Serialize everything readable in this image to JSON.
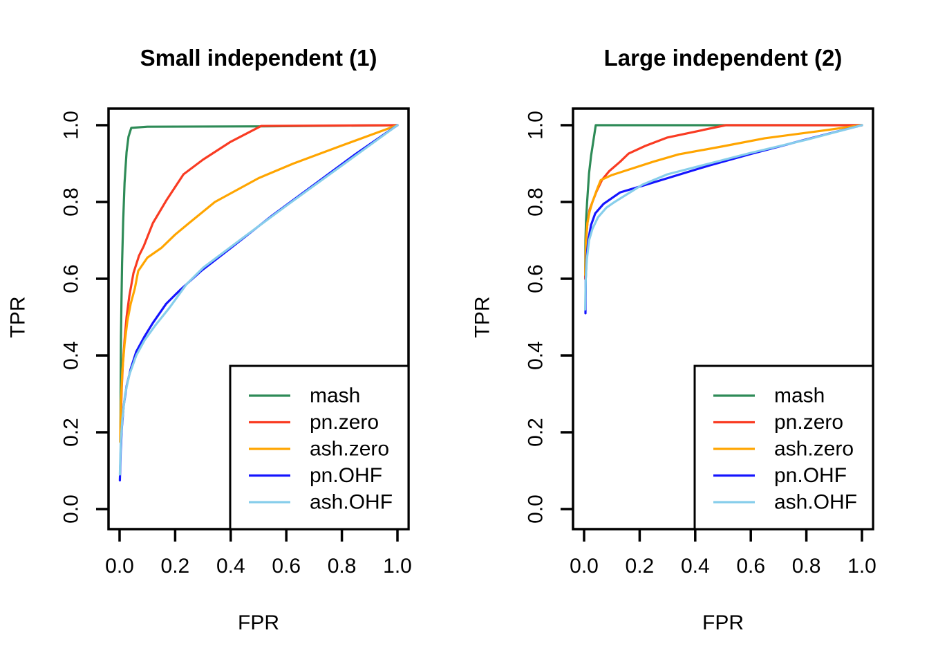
{
  "figure": {
    "background": "#ffffff",
    "text_color": "#000000",
    "axis_color": "#000000"
  },
  "legend": {
    "entries": [
      "mash",
      "pn.zero",
      "ash.zero",
      "pn.OHF",
      "ash.OHF"
    ],
    "position": "bottomright"
  },
  "colors": {
    "mash": "#2E8B57",
    "pn_zero": "#F93B22",
    "ash_zero": "#FFA500",
    "pn_OHF": "#1414FF",
    "ash_OHF": "#87CEEB"
  },
  "chart_data": [
    {
      "type": "line",
      "title": "Small independent (1)",
      "xlabel": "FPR",
      "ylabel": "TPR",
      "xlim": [
        0,
        1
      ],
      "ylim": [
        0,
        1
      ],
      "grid": false,
      "legend_position": "bottomright",
      "xticks": [
        "0.0",
        "0.2",
        "0.4",
        "0.6",
        "0.8",
        "1.0"
      ],
      "yticks": [
        "0.0",
        "0.2",
        "0.4",
        "0.6",
        "0.8",
        "1.0"
      ],
      "series": [
        {
          "name": "mash",
          "color": "#2E8B57",
          "points": [
            [
              0.003,
              0.19
            ],
            [
              0.004,
              0.33
            ],
            [
              0.005,
              0.45
            ],
            [
              0.007,
              0.55
            ],
            [
              0.009,
              0.64
            ],
            [
              0.013,
              0.75
            ],
            [
              0.018,
              0.85
            ],
            [
              0.025,
              0.93
            ],
            [
              0.032,
              0.97
            ],
            [
              0.042,
              0.993
            ],
            [
              0.1,
              0.996
            ],
            [
              0.52,
              0.997
            ],
            [
              1,
              1
            ]
          ]
        },
        {
          "name": "pn.zero",
          "color": "#F93B22",
          "points": [
            [
              0.003,
              0.18
            ],
            [
              0.005,
              0.25
            ],
            [
              0.008,
              0.32
            ],
            [
              0.012,
              0.38
            ],
            [
              0.018,
              0.44
            ],
            [
              0.025,
              0.5
            ],
            [
              0.035,
              0.555
            ],
            [
              0.05,
              0.615
            ],
            [
              0.07,
              0.66
            ],
            [
              0.087,
              0.685
            ],
            [
              0.12,
              0.745
            ],
            [
              0.17,
              0.806
            ],
            [
              0.23,
              0.872
            ],
            [
              0.3,
              0.91
            ],
            [
              0.4,
              0.957
            ],
            [
              0.51,
              0.998
            ],
            [
              1,
              1
            ]
          ]
        },
        {
          "name": "ash.zero",
          "color": "#FFA500",
          "points": [
            [
              0.002,
              0.175
            ],
            [
              0.005,
              0.28
            ],
            [
              0.01,
              0.36
            ],
            [
              0.018,
              0.43
            ],
            [
              0.028,
              0.49
            ],
            [
              0.04,
              0.535
            ],
            [
              0.055,
              0.575
            ],
            [
              0.067,
              0.62
            ],
            [
              0.1,
              0.655
            ],
            [
              0.15,
              0.68
            ],
            [
              0.2,
              0.715
            ],
            [
              0.25,
              0.745
            ],
            [
              0.343,
              0.8
            ],
            [
              0.5,
              0.862
            ],
            [
              0.625,
              0.9
            ],
            [
              0.8,
              0.947
            ],
            [
              1,
              1
            ]
          ]
        },
        {
          "name": "pn.OHF",
          "color": "#1414FF",
          "points": [
            [
              0.001,
              0.075
            ],
            [
              0.004,
              0.15
            ],
            [
              0.008,
              0.21
            ],
            [
              0.015,
              0.27
            ],
            [
              0.025,
              0.32
            ],
            [
              0.04,
              0.365
            ],
            [
              0.06,
              0.41
            ],
            [
              0.09,
              0.45
            ],
            [
              0.12,
              0.485
            ],
            [
              0.168,
              0.535
            ],
            [
              0.22,
              0.572
            ],
            [
              0.293,
              0.62
            ],
            [
              0.4,
              0.68
            ],
            [
              0.55,
              0.765
            ],
            [
              0.7,
              0.845
            ],
            [
              0.85,
              0.925
            ],
            [
              1,
              1
            ]
          ]
        },
        {
          "name": "ash.OHF",
          "color": "#87CEEB",
          "points": [
            [
              0.001,
              0.09
            ],
            [
              0.004,
              0.17
            ],
            [
              0.01,
              0.235
            ],
            [
              0.02,
              0.3
            ],
            [
              0.035,
              0.35
            ],
            [
              0.06,
              0.4
            ],
            [
              0.09,
              0.44
            ],
            [
              0.13,
              0.48
            ],
            [
              0.18,
              0.525
            ],
            [
              0.24,
              0.585
            ],
            [
              0.301,
              0.629
            ],
            [
              0.45,
              0.71
            ],
            [
              0.6,
              0.79
            ],
            [
              0.8,
              0.895
            ],
            [
              1,
              1
            ]
          ]
        }
      ]
    },
    {
      "type": "line",
      "title": "Large independent (2)",
      "xlabel": "FPR",
      "ylabel": "TPR",
      "xlim": [
        0,
        1
      ],
      "ylim": [
        0,
        1
      ],
      "grid": false,
      "legend_position": "bottomright",
      "xticks": [
        "0.0",
        "0.2",
        "0.4",
        "0.6",
        "0.8",
        "1.0"
      ],
      "yticks": [
        "0.0",
        "0.2",
        "0.4",
        "0.6",
        "0.8",
        "1.0"
      ],
      "series": [
        {
          "name": "mash",
          "color": "#2E8B57",
          "points": [
            [
              0.004,
              0.6
            ],
            [
              0.005,
              0.7
            ],
            [
              0.007,
              0.75
            ],
            [
              0.011,
              0.8
            ],
            [
              0.018,
              0.875
            ],
            [
              0.025,
              0.92
            ],
            [
              0.042,
              1.0
            ],
            [
              1,
              1
            ]
          ]
        },
        {
          "name": "pn.zero",
          "color": "#F93B22",
          "points": [
            [
              0.004,
              0.6
            ],
            [
              0.007,
              0.7
            ],
            [
              0.012,
              0.745
            ],
            [
              0.02,
              0.78
            ],
            [
              0.03,
              0.8
            ],
            [
              0.045,
              0.828
            ],
            [
              0.065,
              0.858
            ],
            [
              0.09,
              0.88
            ],
            [
              0.13,
              0.905
            ],
            [
              0.16,
              0.926
            ],
            [
              0.22,
              0.946
            ],
            [
              0.3,
              0.968
            ],
            [
              0.51,
              1.0
            ],
            [
              1,
              1
            ]
          ]
        },
        {
          "name": "ash.zero",
          "color": "#FFA500",
          "points": [
            [
              0.004,
              0.61
            ],
            [
              0.007,
              0.7
            ],
            [
              0.012,
              0.745
            ],
            [
              0.02,
              0.775
            ],
            [
              0.03,
              0.8
            ],
            [
              0.045,
              0.83
            ],
            [
              0.06,
              0.857
            ],
            [
              0.1,
              0.87
            ],
            [
              0.147,
              0.881
            ],
            [
              0.25,
              0.905
            ],
            [
              0.34,
              0.924
            ],
            [
              0.5,
              0.945
            ],
            [
              0.65,
              0.966
            ],
            [
              0.85,
              0.985
            ],
            [
              1,
              1
            ]
          ]
        },
        {
          "name": "pn.OHF",
          "color": "#1414FF",
          "points": [
            [
              0.005,
              0.51
            ],
            [
              0.006,
              0.6
            ],
            [
              0.009,
              0.65
            ],
            [
              0.015,
              0.7
            ],
            [
              0.025,
              0.74
            ],
            [
              0.04,
              0.77
            ],
            [
              0.07,
              0.795
            ],
            [
              0.1,
              0.81
            ],
            [
              0.13,
              0.825
            ],
            [
              0.2,
              0.84
            ],
            [
              0.3,
              0.862
            ],
            [
              0.45,
              0.895
            ],
            [
              0.6,
              0.925
            ],
            [
              0.8,
              0.963
            ],
            [
              1,
              1
            ]
          ]
        },
        {
          "name": "ash.OHF",
          "color": "#87CEEB",
          "points": [
            [
              0.004,
              0.52
            ],
            [
              0.006,
              0.6
            ],
            [
              0.01,
              0.65
            ],
            [
              0.018,
              0.7
            ],
            [
              0.03,
              0.73
            ],
            [
              0.05,
              0.76
            ],
            [
              0.08,
              0.785
            ],
            [
              0.11,
              0.8
            ],
            [
              0.15,
              0.818
            ],
            [
              0.21,
              0.845
            ],
            [
              0.3,
              0.872
            ],
            [
              0.45,
              0.9
            ],
            [
              0.6,
              0.928
            ],
            [
              0.8,
              0.962
            ],
            [
              1,
              1
            ]
          ]
        }
      ]
    }
  ]
}
